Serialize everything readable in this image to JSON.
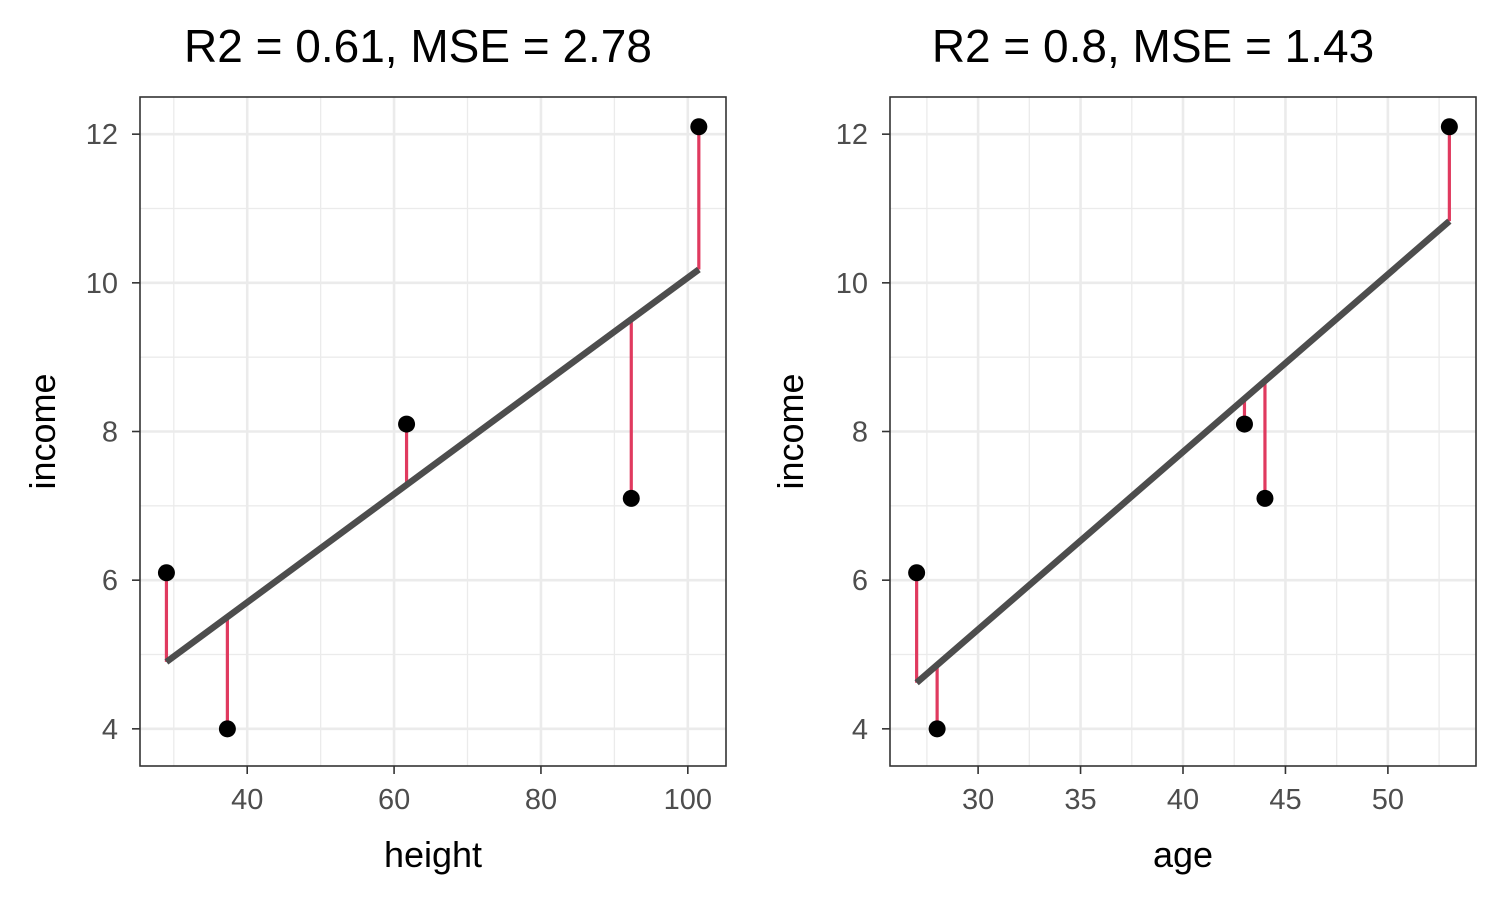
{
  "chart_data": [
    {
      "type": "scatter",
      "title": "R2 = 0.61, MSE = 2.78",
      "xlabel": "height",
      "ylabel": "income",
      "xlim": [
        25.4,
        105.2
      ],
      "ylim": [
        3.5,
        12.5
      ],
      "xticks": [
        40,
        60,
        80,
        100
      ],
      "xminor": [
        30,
        50,
        70,
        90
      ],
      "yticks": [
        4,
        6,
        8,
        10,
        12
      ],
      "yminor": [
        5,
        7,
        9,
        11
      ],
      "x": [
        29,
        37.3,
        61.7,
        92.3,
        101.5
      ],
      "y": [
        6.1,
        4.0,
        8.1,
        7.1,
        12.1
      ],
      "fitted": [
        4.9,
        5.5,
        7.3,
        9.5,
        10.18
      ],
      "grid": true
    },
    {
      "type": "scatter",
      "title": "R2 = 0.8, MSE = 1.43",
      "xlabel": "age",
      "ylabel": "income",
      "xlim": [
        25.7,
        54.3
      ],
      "ylim": [
        3.5,
        12.5
      ],
      "xticks": [
        30,
        35,
        40,
        45,
        50
      ],
      "xminor": [
        27.5,
        32.5,
        37.5,
        42.5,
        47.5,
        52.5
      ],
      "yticks": [
        4,
        6,
        8,
        10,
        12
      ],
      "yminor": [
        5,
        7,
        9,
        11
      ],
      "x": [
        27,
        28,
        43,
        44,
        53
      ],
      "y": [
        6.1,
        4.0,
        8.1,
        7.1,
        12.1
      ],
      "fitted": [
        4.62,
        4.85,
        8.43,
        8.67,
        10.83
      ],
      "grid": true
    }
  ],
  "colors": {
    "residual": "#e03a5f",
    "fit_line": "#4d4d4d",
    "point": "#000000",
    "grid": "#ebebeb"
  }
}
